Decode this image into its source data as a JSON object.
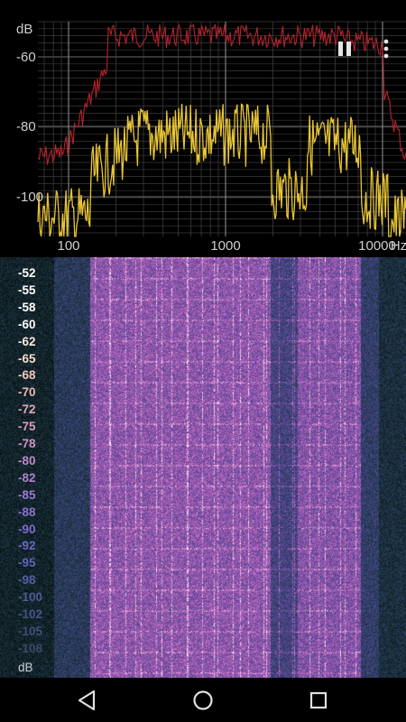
{
  "spectrum": {
    "y_unit": "dB",
    "y_ticks": [
      "-60",
      "-80",
      "-100"
    ],
    "x_ticks": [
      "100",
      "1000",
      "10000"
    ],
    "x_unit": "Hz",
    "peak_color": "#b5232d",
    "live_color": "#e8c535"
  },
  "controls": {
    "pause_icon": "pause-icon",
    "more_icon": "more-vert-icon"
  },
  "spectrogram": {
    "db_labels": [
      {
        "text": "-52",
        "color": "#ffffff"
      },
      {
        "text": "-55",
        "color": "#ffffff"
      },
      {
        "text": "-58",
        "color": "#ffffff"
      },
      {
        "text": "-60",
        "color": "#ffffff"
      },
      {
        "text": "-62",
        "color": "#fbeadf"
      },
      {
        "text": "-65",
        "color": "#f7dccc"
      },
      {
        "text": "-68",
        "color": "#f2c9b8"
      },
      {
        "text": "-70",
        "color": "#eab6b2"
      },
      {
        "text": "-72",
        "color": "#e2a7b6"
      },
      {
        "text": "-75",
        "color": "#d99cbc"
      },
      {
        "text": "-78",
        "color": "#cc92c2"
      },
      {
        "text": "-80",
        "color": "#be8ac8"
      },
      {
        "text": "-82",
        "color": "#ad82cc"
      },
      {
        "text": "-85",
        "color": "#9b7bd0"
      },
      {
        "text": "-88",
        "color": "#8a73cf"
      },
      {
        "text": "-90",
        "color": "#7b6ccc"
      },
      {
        "text": "-92",
        "color": "#6d66c4"
      },
      {
        "text": "-95",
        "color": "#6062b6"
      },
      {
        "text": "-98",
        "color": "#565ea5"
      },
      {
        "text": "-100",
        "color": "#4f5a94"
      },
      {
        "text": "-102",
        "color": "#485584"
      },
      {
        "text": "-105",
        "color": "#424f74"
      },
      {
        "text": "-108",
        "color": "#3d4866"
      }
    ],
    "unit": "dB"
  },
  "navigation": {
    "back_icon": "back-triangle-icon",
    "home_icon": "home-circle-icon",
    "recents_icon": "recents-square-icon"
  }
}
